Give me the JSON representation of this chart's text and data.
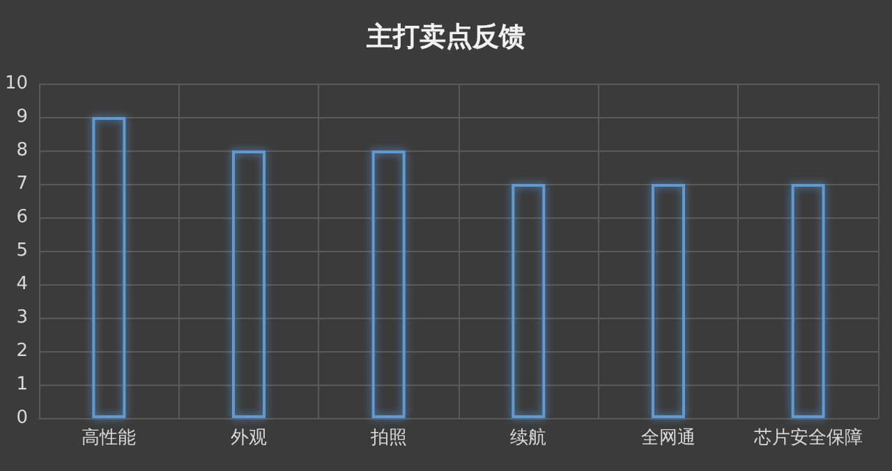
{
  "chart_data": {
    "type": "bar",
    "title": "主打卖点反馈",
    "categories": [
      "高性能",
      "外观",
      "拍照",
      "续航",
      "全网通",
      "芯片安全保障"
    ],
    "values": [
      9,
      8,
      8,
      7,
      7,
      7
    ],
    "color": "#5b9bd5",
    "ylim": [
      0,
      10
    ],
    "yticks": [
      0,
      1,
      2,
      3,
      4,
      5,
      6,
      7,
      8,
      9,
      10
    ],
    "grid": true
  }
}
